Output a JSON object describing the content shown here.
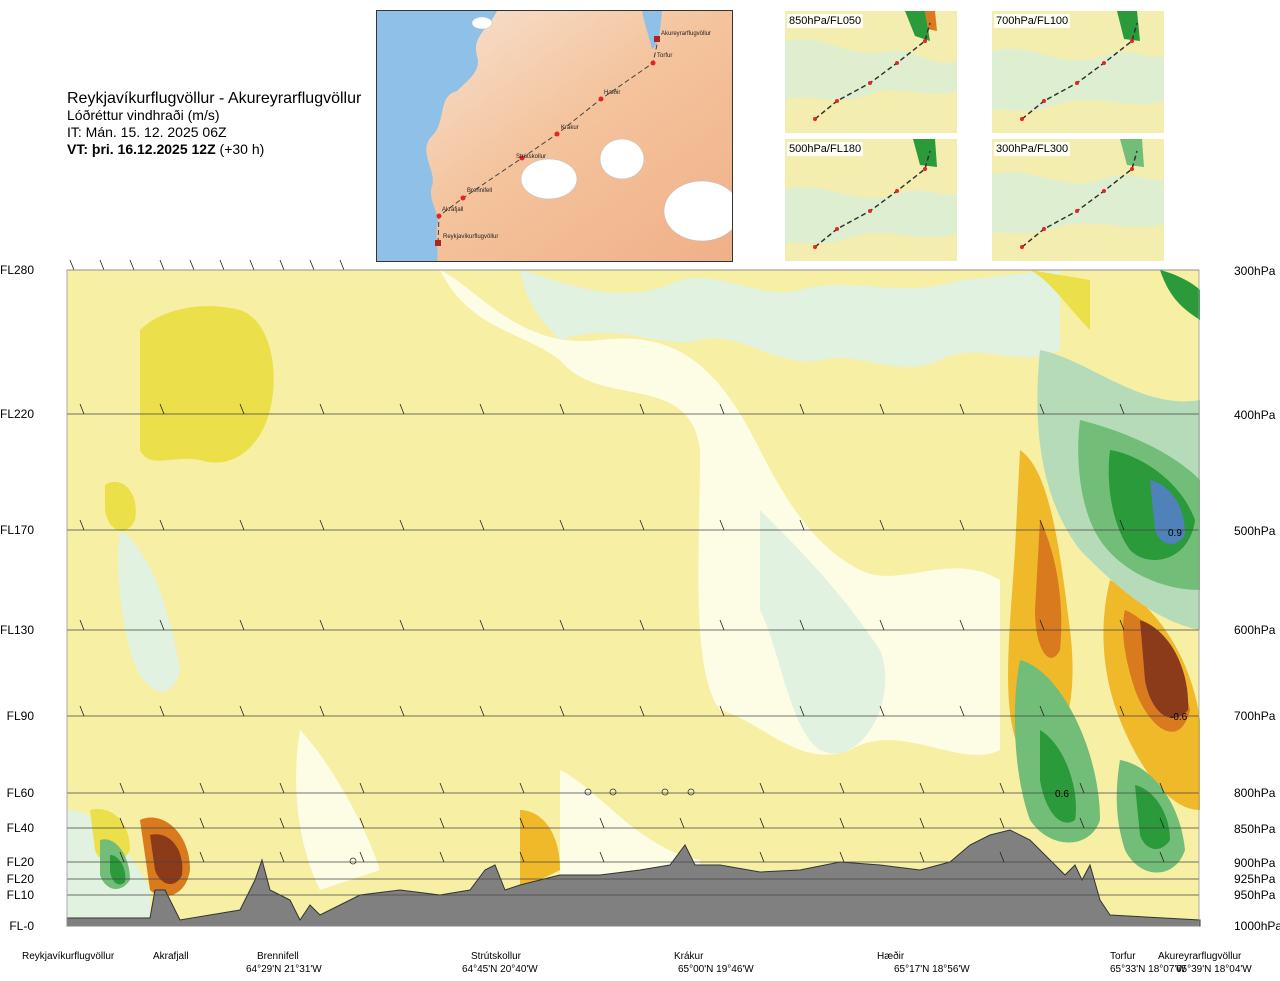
{
  "header": {
    "route": "Reykjavíkurflugvöllur - Akureyrarflugvöllur",
    "variable": "Lóðréttur vindhraði (m/s)",
    "issue_time": "IT: Mán. 15. 12. 2025 06Z",
    "valid_prefix": "VT: þri. 16.12.2025 12Z",
    "valid_suffix": "(+30 h)"
  },
  "route_map": {
    "points": [
      {
        "name": "Akureyrarflugvöllur"
      },
      {
        "name": "Torfur"
      },
      {
        "name": "Hæðir"
      },
      {
        "name": "Krákur"
      },
      {
        "name": "Strútskollur"
      },
      {
        "name": "Brennifell"
      },
      {
        "name": "Akrafjall"
      },
      {
        "name": "Reykjavíkurflugvöllur"
      }
    ],
    "colors": {
      "sea": "#6fa8dc",
      "land": "#f2b58a",
      "glacier": "#ffffff",
      "route": "#444444",
      "point": "#e8222a"
    }
  },
  "level_maps": [
    {
      "label": "850hPa/FL050"
    },
    {
      "label": "700hPa/FL100"
    },
    {
      "label": "500hPa/FL180"
    },
    {
      "label": "300hPa/FL300"
    }
  ],
  "chart_data": {
    "type": "heatmap",
    "title": "Lóðréttur vindhraði (m/s)",
    "left_axis_ticks": [
      "FL280",
      "FL220",
      "FL170",
      "FL130",
      "FL90",
      "FL60",
      "FL40",
      "FL20",
      "FL20",
      "FL10",
      "FL-0"
    ],
    "right_axis_ticks": [
      "300hPa",
      "400hPa",
      "500hPa",
      "600hPa",
      "700hPa",
      "800hPa",
      "850hPa",
      "900hPa",
      "925hPa",
      "950hPa",
      "1000hPa"
    ],
    "pressure_levels_hpa": [
      300,
      400,
      500,
      600,
      700,
      800,
      850,
      900,
      925,
      950,
      1000
    ],
    "waypoints": [
      {
        "name": "Reykjavíkurflugvöllur",
        "coord": ""
      },
      {
        "name": "Akrafjall",
        "coord": ""
      },
      {
        "name": "Brennifell",
        "coord": "64°29'N 21°31'W"
      },
      {
        "name": "Strútskollur",
        "coord": "64°45'N 20°40'W"
      },
      {
        "name": "Krákur",
        "coord": "65°00'N 19°46'W"
      },
      {
        "name": "Hæðir",
        "coord": "65°17'N 18°56'W"
      },
      {
        "name": "Torfur",
        "coord": "65°33'N 18°07'W"
      },
      {
        "name": "Akureyrarflugvöllur",
        "coord": "65°39'N 18°04'W"
      }
    ],
    "annotations": [
      "0.9",
      "-0.6",
      "0.6"
    ],
    "color_scale": {
      "strong_down": "#8b3a1a",
      "down_3": "#d97a1e",
      "down_2": "#f0b92a",
      "down_1": "#ece04a",
      "neutral_down": "#f6efa4",
      "neutral_up": "#fdfde6",
      "up_1": "#e1f2e0",
      "up_2": "#b6dbb8",
      "up_3": "#72bd78",
      "up_4": "#2b9a3a",
      "strong_up": "#4e82b8",
      "terrain": "#808080"
    }
  }
}
